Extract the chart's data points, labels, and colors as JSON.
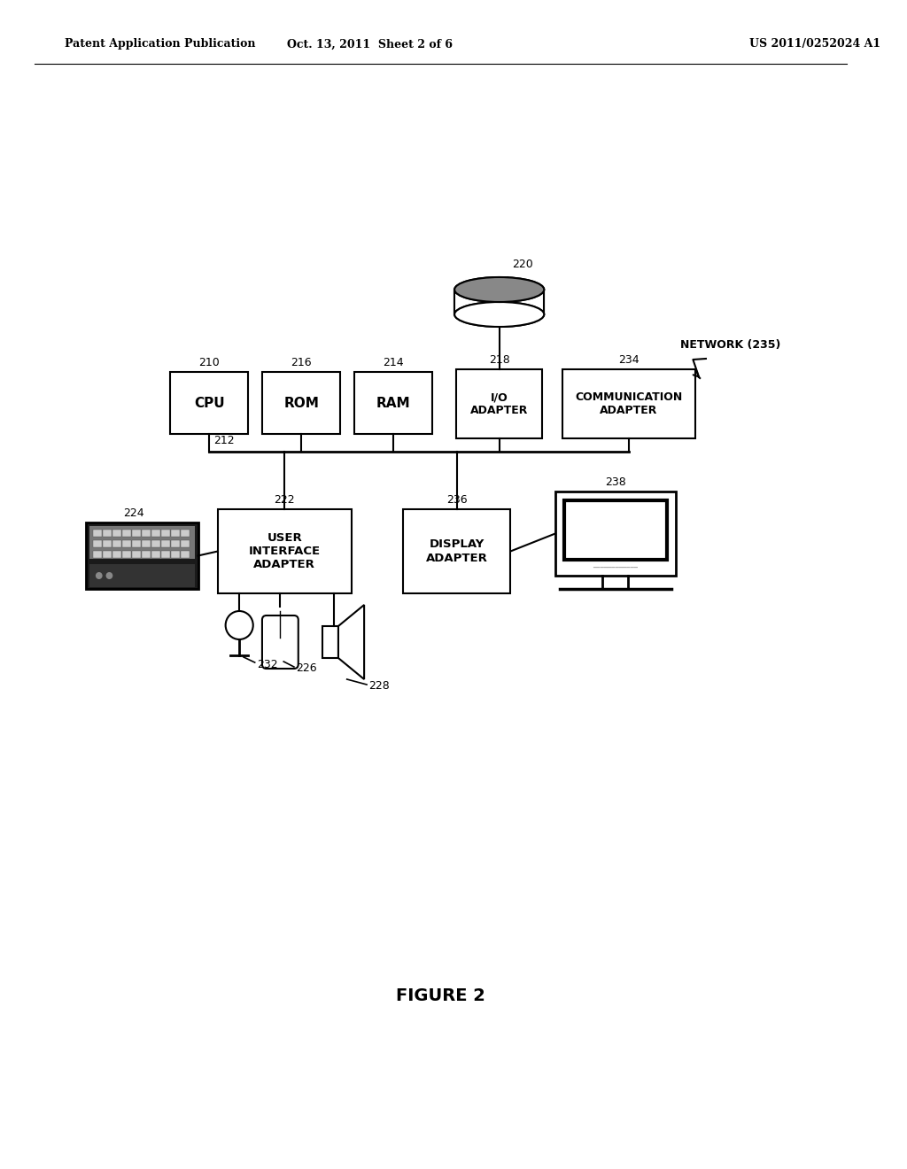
{
  "background_color": "#ffffff",
  "header_left": "Patent Application Publication",
  "header_center": "Oct. 13, 2011  Sheet 2 of 6",
  "header_right": "US 2011/0252024 A1",
  "figure_caption": "FIGURE 2"
}
